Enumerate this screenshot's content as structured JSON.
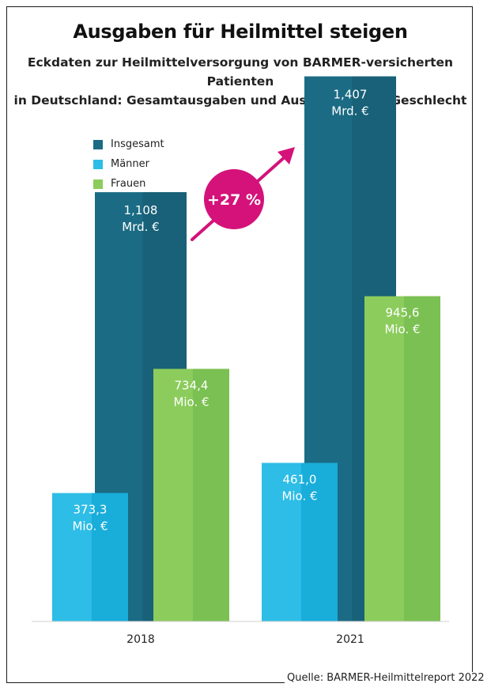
{
  "title": "Ausgaben für Heilmittel steigen",
  "subtitle_line1": "Eckdaten zur Heilmittelversorgung von BARMER-versicherten Patienten",
  "subtitle_line2": "in Deutschland: Gesamtausgaben und Ausgaben nach Geschlecht",
  "growth_badge": "+27 %",
  "source": "Quelle: BARMER-Heilmittelreport 2022",
  "colors": {
    "insgesamt": "#1b6b84",
    "maenner": "#2ebde6",
    "frauen": "#8ccc5c",
    "badge": "#d4127a"
  },
  "chart_data": {
    "type": "bar",
    "categories": [
      "2018",
      "2021"
    ],
    "series": [
      {
        "name": "Insgesamt",
        "values": [
          1.108,
          1.407
        ],
        "unit": "Mrd. €",
        "labels": [
          "1,108",
          "1,407"
        ]
      },
      {
        "name": "Männer",
        "values": [
          373.3,
          461.0
        ],
        "unit": "Mio. €",
        "labels": [
          "373,3",
          "461,0"
        ]
      },
      {
        "name": "Frauen",
        "values": [
          734.4,
          945.6
        ],
        "unit": "Mio. €",
        "labels": [
          "734,4",
          "945,6"
        ]
      }
    ],
    "legend_position": "top-left",
    "grid": false
  }
}
